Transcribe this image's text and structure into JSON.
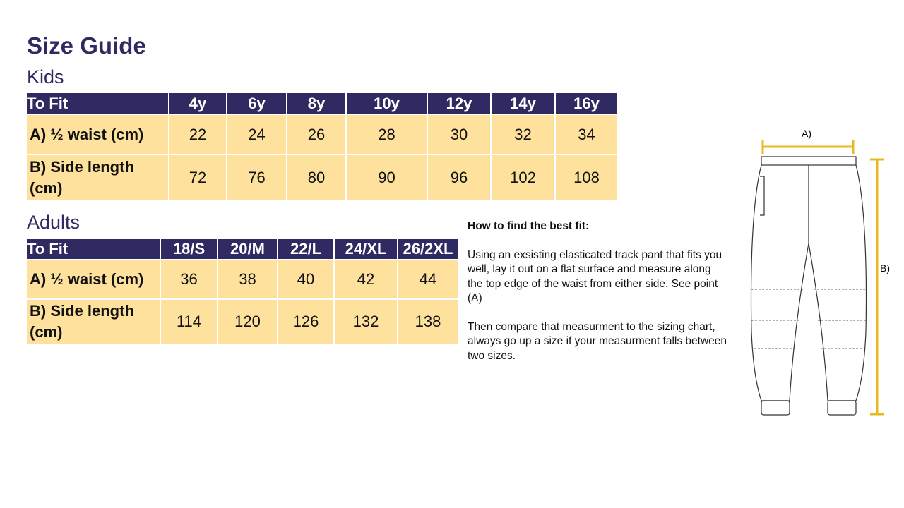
{
  "title": "Size Guide",
  "kids": {
    "heading": "Kids",
    "header": [
      "To Fit",
      "4y",
      "6y",
      "8y",
      "10y",
      "12y",
      "14y",
      "16y"
    ],
    "rows": [
      [
        "A) ½ waist (cm)",
        22,
        24,
        26,
        28,
        30,
        32,
        34
      ],
      [
        "B) Side length (cm)",
        72,
        76,
        80,
        90,
        96,
        102,
        108
      ]
    ]
  },
  "adults": {
    "heading": "Adults",
    "header": [
      "To Fit",
      "18/S",
      "20/M",
      "22/L",
      "24/XL",
      "26/2XL"
    ],
    "rows": [
      [
        "A) ½ waist (cm)",
        36,
        38,
        40,
        42,
        44
      ],
      [
        "B) Side length (cm)",
        114,
        120,
        126,
        132,
        138
      ]
    ]
  },
  "instructions": {
    "heading": "How to find the best fit:",
    "paragraphs": [
      "Using an exsisting elasticated track pant that fits you well, lay it out on a flat surface and measure along the top edge of the waist from either side. See point (A)",
      "Then compare that measurment to the sizing chart, always go up a size if your measurment falls between two sizes."
    ]
  },
  "diagram": {
    "label_a": "A)",
    "label_b": "B)"
  }
}
